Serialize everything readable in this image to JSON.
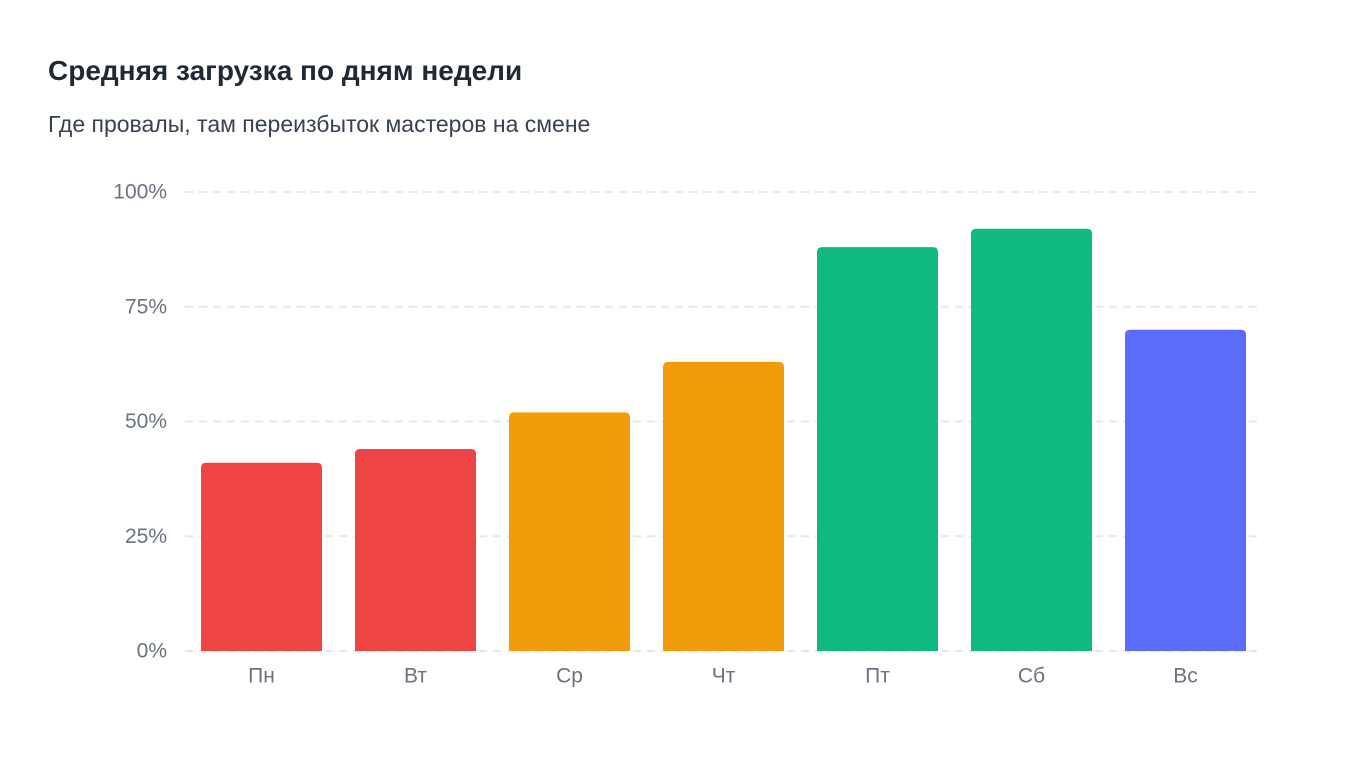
{
  "chart_data": {
    "type": "bar",
    "title": "Средняя загрузка по дням недели",
    "subtitle": "Где провалы, там переизбыток мастеров на смене",
    "xlabel": "",
    "ylabel": "",
    "categories": [
      "Пн",
      "Вт",
      "Ср",
      "Чт",
      "Пт",
      "Сб",
      "Вс"
    ],
    "values": [
      41,
      44,
      52,
      63,
      88,
      92,
      70
    ],
    "bar_colors": [
      "#ef4444",
      "#ef4444",
      "#f39c0b",
      "#f39c0b",
      "#10b981",
      "#10b981",
      "#5b6cfd"
    ],
    "ylim": [
      0,
      100
    ],
    "y_ticks": [
      0,
      25,
      50,
      75,
      100
    ],
    "y_tick_labels": [
      "0%",
      "25%",
      "50%",
      "75%",
      "100%"
    ],
    "grid": true,
    "legend": "none"
  }
}
